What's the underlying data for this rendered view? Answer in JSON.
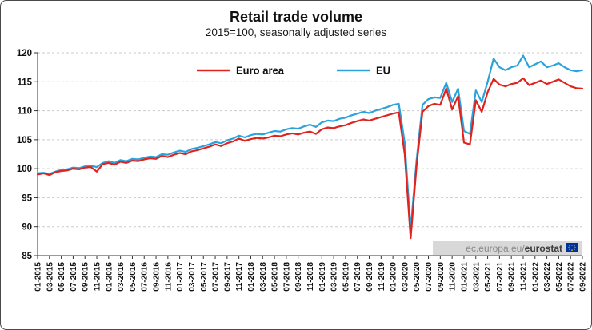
{
  "chart_data": {
    "type": "line",
    "title": "Retail trade volume",
    "subtitle": "2015=100, seasonally adjusted series",
    "xlabel": "",
    "ylabel": "",
    "ylim": [
      85,
      120
    ],
    "y_ticks": [
      85,
      90,
      95,
      100,
      105,
      110,
      115,
      120
    ],
    "grid": "dashed-horizontal",
    "legend_position": "top-center-inside",
    "x_tick_labels": [
      "01-2015",
      "03-2015",
      "05-2015",
      "07-2015",
      "09-2015",
      "11-2015",
      "01-2016",
      "03-2016",
      "05-2016",
      "07-2016",
      "09-2016",
      "11-2016",
      "01-2017",
      "03-2017",
      "05-2017",
      "07-2017",
      "09-2017",
      "11-2017",
      "01-2018",
      "03-2018",
      "05-2018",
      "07-2018",
      "09-2018",
      "11-2018",
      "01-2019",
      "03-2019",
      "05-2019",
      "07-2019",
      "09-2019",
      "11-2019",
      "01-2020",
      "03-2020",
      "05-2020",
      "07-2020",
      "09-2020",
      "11-2020",
      "01-2021",
      "03-2021",
      "05-2021",
      "07-2021",
      "09-2021",
      "11-2021",
      "01-2022",
      "03-2022",
      "05-2022",
      "07-2022",
      "09-2022"
    ],
    "series": [
      {
        "name": "Euro area",
        "color": "#e0231f",
        "values": [
          99.0,
          99.2,
          98.9,
          99.4,
          99.6,
          99.7,
          100.0,
          99.9,
          100.2,
          100.3,
          99.5,
          100.8,
          101.0,
          100.7,
          101.2,
          101.0,
          101.4,
          101.3,
          101.6,
          101.8,
          101.7,
          102.2,
          102.0,
          102.4,
          102.7,
          102.5,
          103.0,
          103.2,
          103.5,
          103.8,
          104.2,
          103.9,
          104.4,
          104.7,
          105.2,
          104.8,
          105.1,
          105.3,
          105.2,
          105.4,
          105.7,
          105.6,
          105.9,
          106.1,
          105.9,
          106.2,
          106.4,
          106.0,
          106.8,
          107.1,
          107.0,
          107.3,
          107.5,
          107.9,
          108.2,
          108.5,
          108.3,
          108.6,
          108.9,
          109.2,
          109.5,
          109.7,
          102.5,
          88.0,
          100.5,
          109.8,
          110.8,
          111.2,
          111.0,
          113.8,
          110.2,
          112.5,
          104.5,
          104.2,
          111.8,
          109.8,
          113.2,
          115.5,
          114.5,
          114.2,
          114.6,
          114.8,
          115.6,
          114.4,
          114.8,
          115.2,
          114.6,
          115.0,
          115.4,
          114.8,
          114.2,
          113.9,
          113.8
        ]
      },
      {
        "name": "EU",
        "color": "#2aa3dd",
        "values": [
          99.2,
          99.3,
          99.1,
          99.5,
          99.8,
          99.9,
          100.2,
          100.1,
          100.4,
          100.5,
          100.3,
          101.0,
          101.3,
          101.0,
          101.5,
          101.3,
          101.7,
          101.6,
          101.9,
          102.1,
          102.0,
          102.5,
          102.4,
          102.8,
          103.1,
          102.9,
          103.4,
          103.6,
          103.9,
          104.2,
          104.6,
          104.4,
          104.9,
          105.2,
          105.7,
          105.4,
          105.8,
          106.0,
          105.9,
          106.2,
          106.5,
          106.4,
          106.8,
          107.0,
          106.9,
          107.3,
          107.6,
          107.2,
          108.0,
          108.3,
          108.2,
          108.6,
          108.8,
          109.2,
          109.5,
          109.8,
          109.6,
          110.0,
          110.3,
          110.6,
          111.0,
          111.2,
          104.5,
          89.5,
          101.5,
          111.0,
          112.0,
          112.3,
          112.2,
          114.8,
          111.5,
          113.8,
          106.5,
          106.0,
          113.5,
          111.5,
          115.0,
          119.0,
          117.5,
          117.0,
          117.5,
          117.8,
          119.5,
          117.5,
          118.0,
          118.5,
          117.5,
          117.8,
          118.2,
          117.5,
          117.0,
          116.8,
          117.0
        ]
      }
    ],
    "watermark": {
      "text_normal": "ec.europa.eu/",
      "text_bold": "eurostat",
      "bg": "#d8d8d8",
      "flag_color": "#003399",
      "star_color": "#ffcc00"
    }
  }
}
